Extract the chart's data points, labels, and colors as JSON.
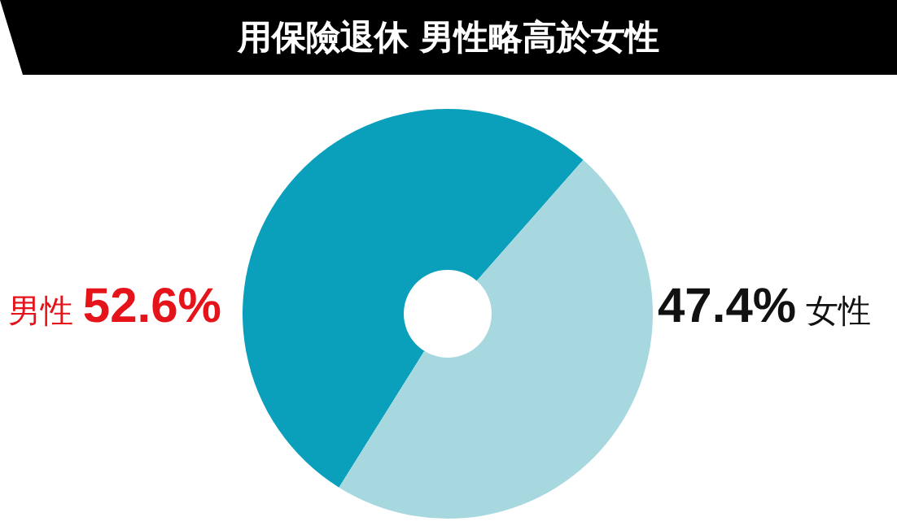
{
  "chart_data": {
    "type": "donut",
    "title": "用保險退休 男性略高於女性",
    "categories": [
      "男性",
      "女性"
    ],
    "values": [
      52.6,
      47.4
    ],
    "colors": [
      "#0aa0bc",
      "#a8d8df"
    ],
    "value_labels": [
      "52.6%",
      "47.4%"
    ]
  }
}
